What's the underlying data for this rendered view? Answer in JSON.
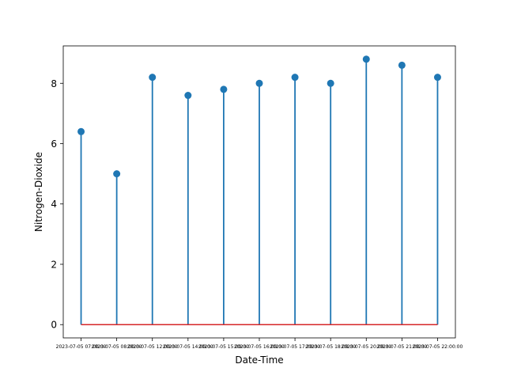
{
  "chart_data": {
    "type": "stem",
    "xlabel": "Date-Time",
    "ylabel": "Nitrogen-Dioxide",
    "categories": [
      "2023-07-05 07:00:00",
      "2023-07-05 08:00:00",
      "2023-07-05 12:00:00",
      "2023-07-05 14:00:00",
      "2023-07-05 15:00:00",
      "2023-07-05 16:00:00",
      "2023-07-05 17:00:00",
      "2023-07-05 18:00:00",
      "2023-07-05 20:00:00",
      "2023-07-05 21:00:00",
      "2023-07-05 22:00:00"
    ],
    "values": [
      6.4,
      5.0,
      8.2,
      7.6,
      7.8,
      8.0,
      8.2,
      8.0,
      8.8,
      8.6,
      8.2
    ],
    "yticks": [
      0,
      2,
      4,
      6,
      8
    ],
    "ylim": [
      -0.44,
      9.24
    ],
    "baseline": 0,
    "grid": false,
    "colors": {
      "stem": "#1f77b4",
      "marker": "#1f77b4",
      "baseline": "#d62728"
    }
  }
}
